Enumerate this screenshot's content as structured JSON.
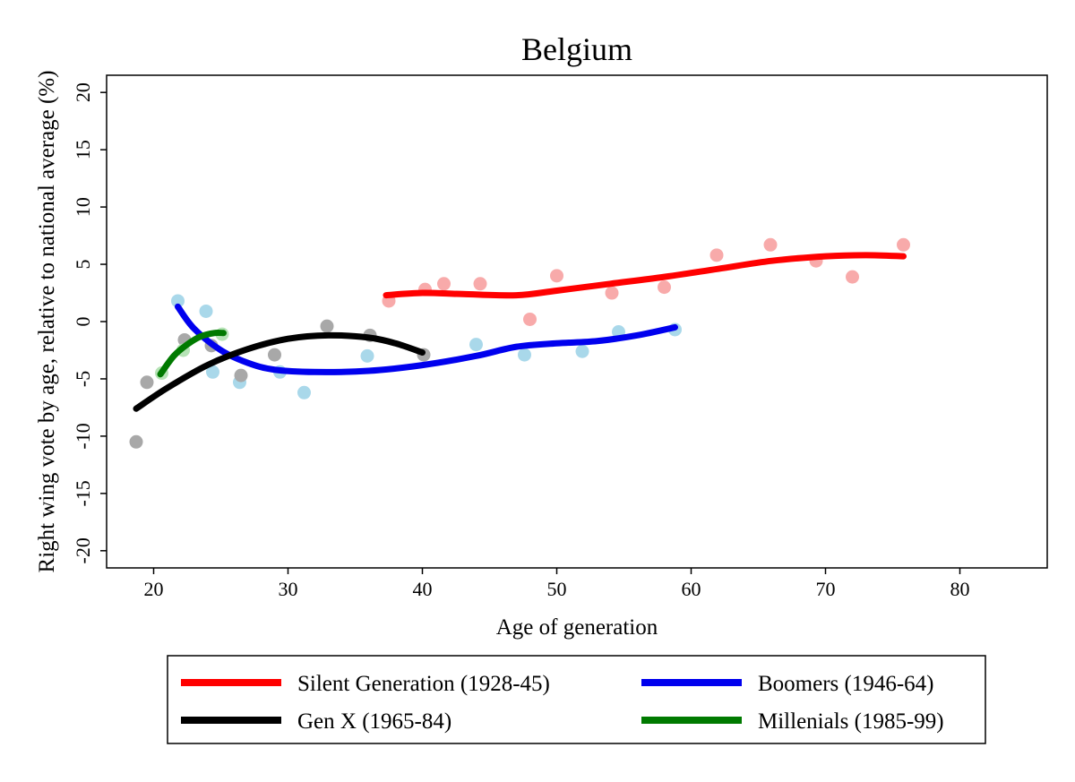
{
  "chart_data": {
    "type": "scatter",
    "title": "Belgium",
    "xlabel": "Age of generation",
    "ylabel": "Right wing vote by age, relative to national average (%)",
    "xlim": [
      16.5,
      86.5
    ],
    "ylim": [
      -21.5,
      21.5
    ],
    "xticks": [
      20,
      30,
      40,
      50,
      60,
      70,
      80
    ],
    "yticks": [
      20,
      15,
      10,
      5,
      0,
      -5,
      -10,
      -15,
      -20
    ],
    "xtick_labels": [
      "20",
      "30",
      "40",
      "50",
      "60",
      "70",
      "80"
    ],
    "ytick_labels": [
      "20",
      "15",
      "10",
      "5",
      "0",
      "-5",
      "-10",
      "-15",
      "-20"
    ],
    "grid": false,
    "legend_position": "bottom",
    "series": [
      {
        "name": "Silent Generation (1928-45)",
        "line_color": "#ff0000",
        "point_color": "#f8aaaa",
        "points": [
          [
            37.5,
            1.8
          ],
          [
            40.2,
            2.8
          ],
          [
            41.6,
            3.3
          ],
          [
            44.3,
            3.3
          ],
          [
            48.0,
            0.2
          ],
          [
            50.0,
            4.0
          ],
          [
            54.1,
            2.5
          ],
          [
            58.0,
            3.0
          ],
          [
            61.9,
            5.8
          ],
          [
            65.9,
            6.7
          ],
          [
            69.3,
            5.3
          ],
          [
            72.0,
            3.9
          ],
          [
            75.8,
            6.7
          ]
        ],
        "fit": [
          [
            37.3,
            2.3
          ],
          [
            40,
            2.5
          ],
          [
            43,
            2.4
          ],
          [
            47,
            2.3
          ],
          [
            50,
            2.7
          ],
          [
            54,
            3.3
          ],
          [
            58,
            3.9
          ],
          [
            62,
            4.6
          ],
          [
            66,
            5.3
          ],
          [
            70,
            5.7
          ],
          [
            73,
            5.8
          ],
          [
            75.8,
            5.7
          ]
        ]
      },
      {
        "name": "Boomers (1946-64)",
        "line_color": "#0000ee",
        "point_color": "#a9d8ea",
        "points": [
          [
            21.8,
            1.8
          ],
          [
            23.9,
            0.9
          ],
          [
            24.4,
            -4.4
          ],
          [
            26.4,
            -5.3
          ],
          [
            29.4,
            -4.4
          ],
          [
            31.2,
            -6.2
          ],
          [
            35.9,
            -3.0
          ],
          [
            44.0,
            -2.0
          ],
          [
            47.6,
            -2.9
          ],
          [
            51.9,
            -2.6
          ],
          [
            54.6,
            -0.9
          ],
          [
            58.8,
            -0.7
          ]
        ],
        "fit": [
          [
            21.8,
            1.3
          ],
          [
            23,
            -0.6
          ],
          [
            25,
            -2.5
          ],
          [
            27,
            -3.6
          ],
          [
            29,
            -4.2
          ],
          [
            32,
            -4.4
          ],
          [
            36,
            -4.3
          ],
          [
            40,
            -3.8
          ],
          [
            44,
            -3.0
          ],
          [
            47,
            -2.2
          ],
          [
            50,
            -1.9
          ],
          [
            53,
            -1.7
          ],
          [
            56,
            -1.2
          ],
          [
            58.8,
            -0.5
          ]
        ]
      },
      {
        "name": "Gen X (1965-84)",
        "line_color": "#000000",
        "point_color": "#a8a8a8",
        "points": [
          [
            18.7,
            -10.5
          ],
          [
            19.5,
            -5.3
          ],
          [
            22.3,
            -1.6
          ],
          [
            24.3,
            -2.1
          ],
          [
            26.5,
            -4.7
          ],
          [
            29.0,
            -2.9
          ],
          [
            32.9,
            -0.4
          ],
          [
            36.1,
            -1.2
          ],
          [
            40.1,
            -2.9
          ]
        ],
        "fit": [
          [
            18.7,
            -7.6
          ],
          [
            21,
            -5.8
          ],
          [
            24,
            -3.8
          ],
          [
            27,
            -2.4
          ],
          [
            30,
            -1.5
          ],
          [
            33,
            -1.2
          ],
          [
            36,
            -1.4
          ],
          [
            38,
            -1.9
          ],
          [
            40,
            -2.7
          ]
        ]
      },
      {
        "name": "Millenials (1985-99)",
        "line_color": "#007a00",
        "point_color": "#b6e3b6",
        "points": [
          [
            20.6,
            -4.5
          ],
          [
            22.2,
            -2.5
          ],
          [
            25.1,
            -1.1
          ]
        ],
        "fit": [
          [
            20.5,
            -4.6
          ],
          [
            21.5,
            -3.0
          ],
          [
            22.5,
            -2.0
          ],
          [
            23.5,
            -1.3
          ],
          [
            24.5,
            -1.0
          ],
          [
            25.2,
            -1.0
          ]
        ]
      }
    ]
  }
}
